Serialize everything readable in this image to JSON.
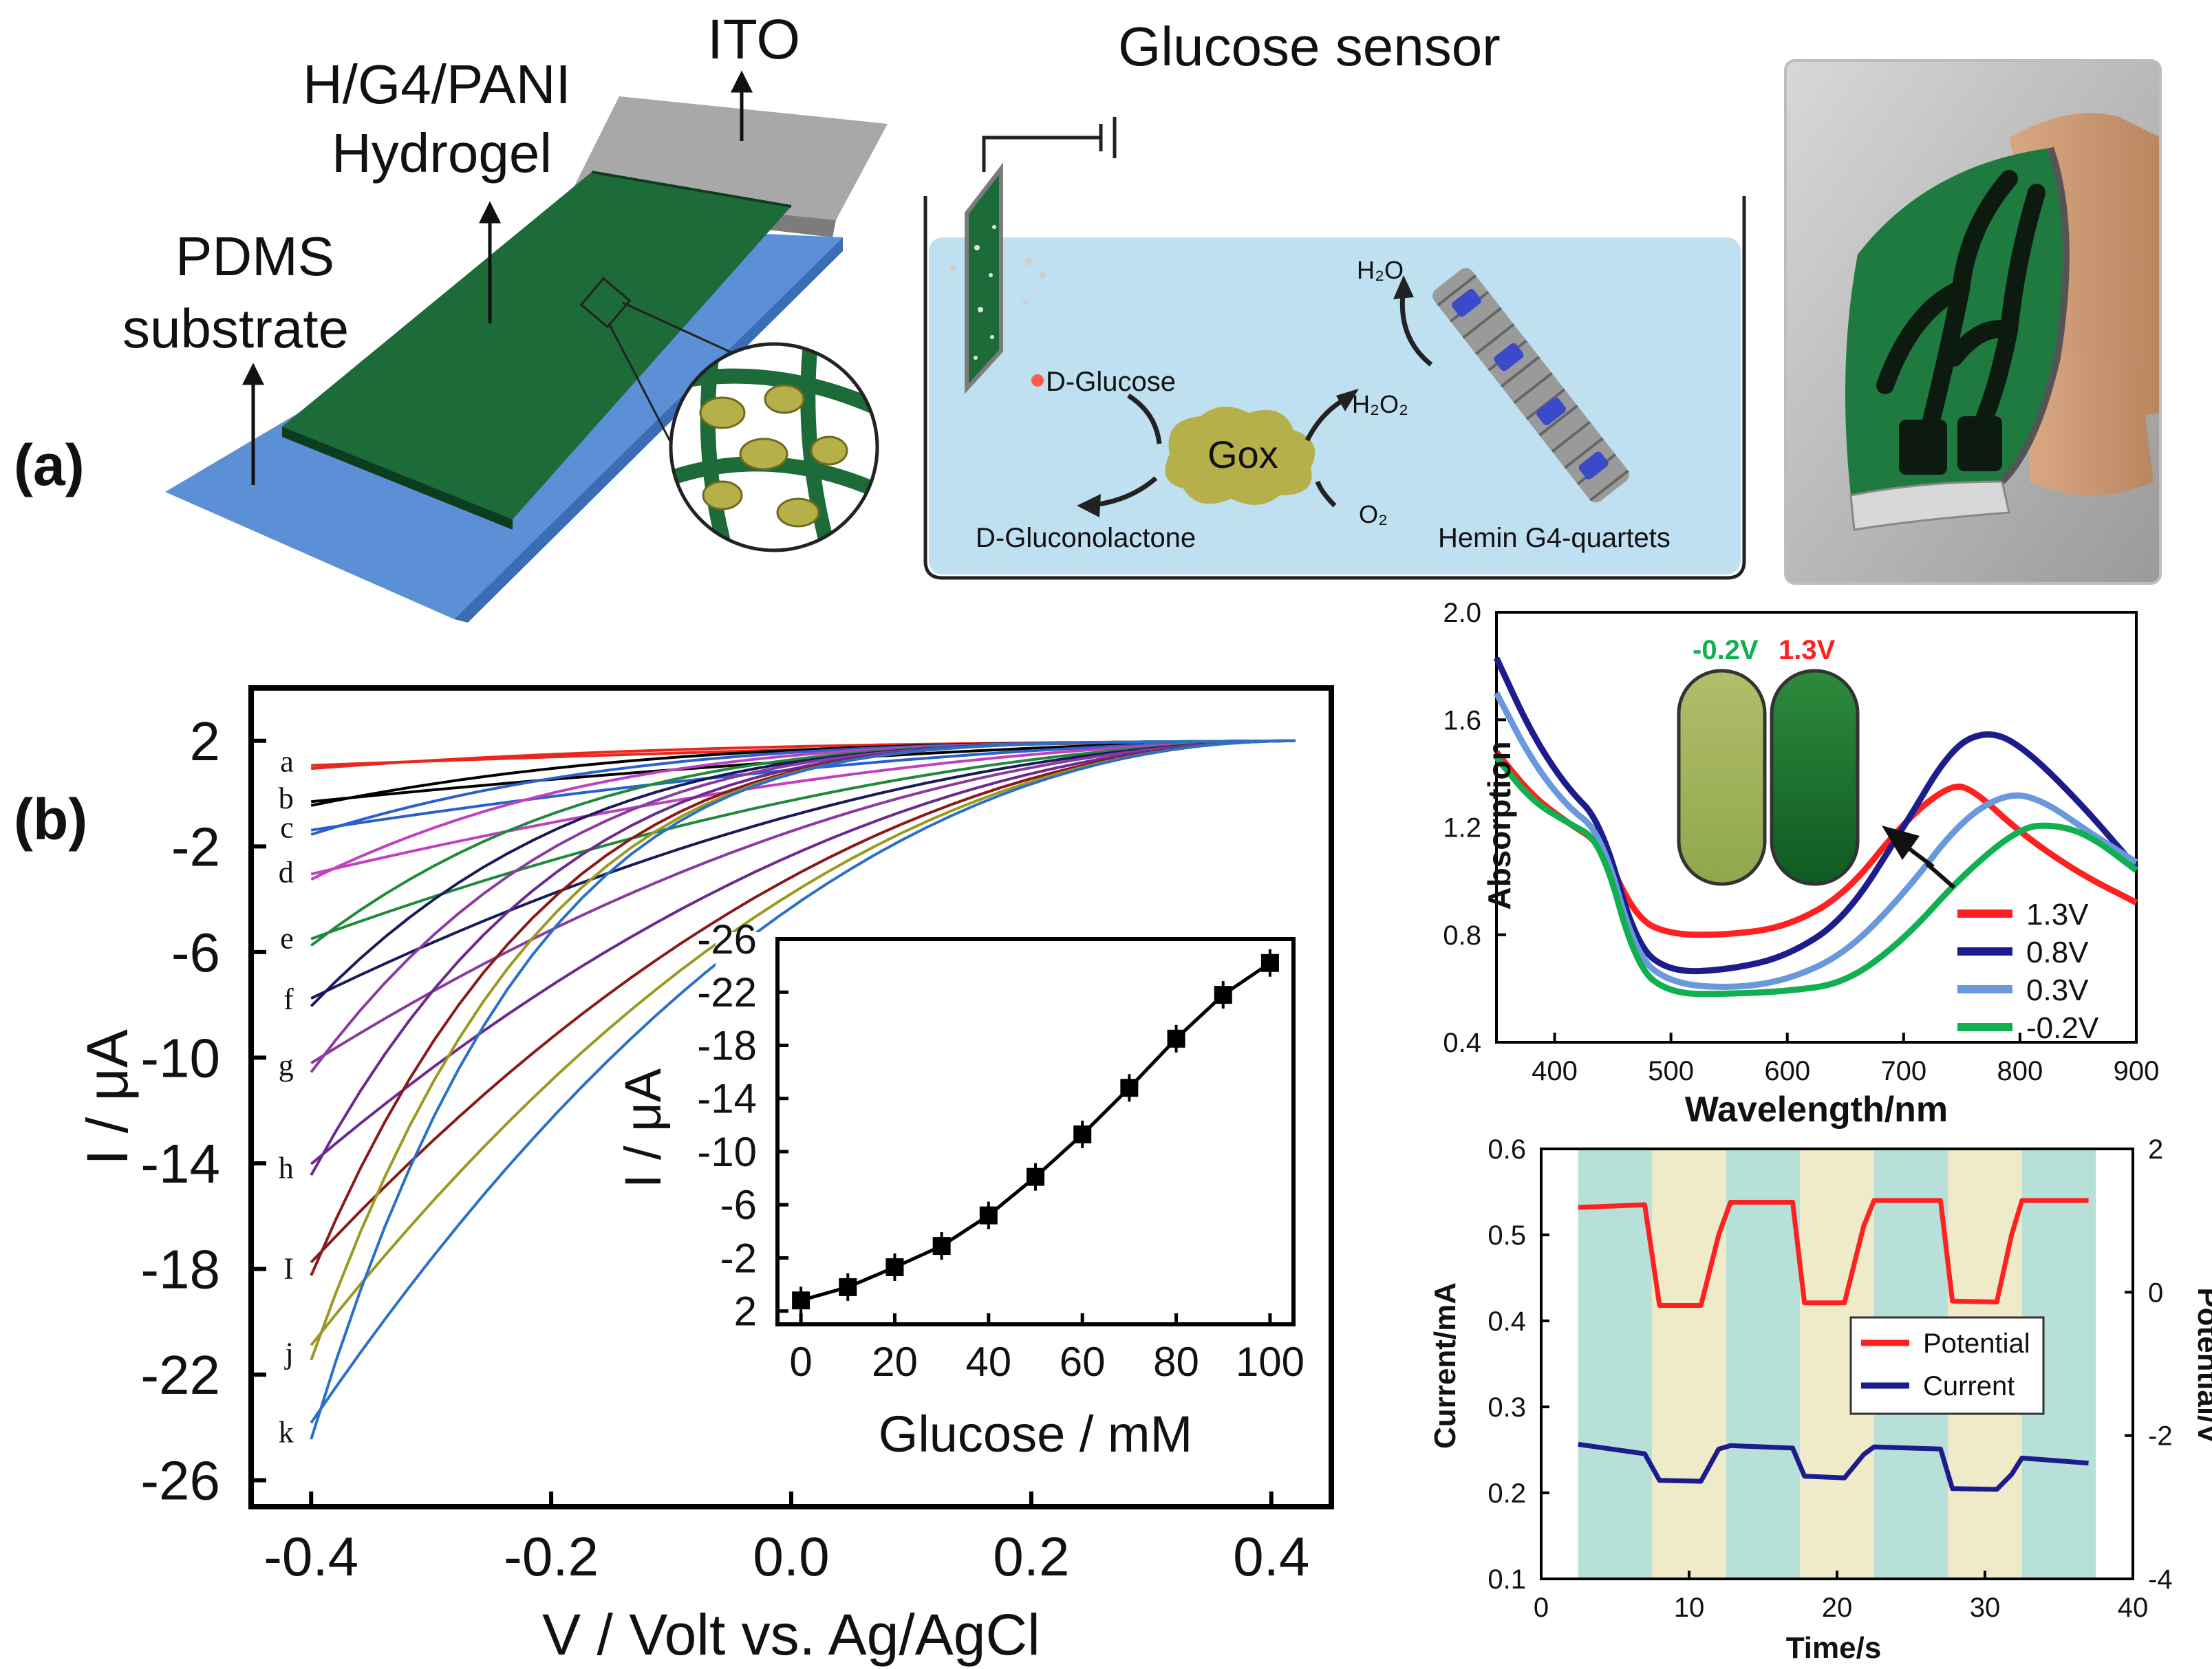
{
  "panel_labels": {
    "a": "(a)",
    "b": "(b)"
  },
  "schematic": {
    "ito": "ITO",
    "hydrogel_line1": "H/G4/PANI",
    "hydrogel_line2": "Hydrogel",
    "pdms_line1": "PDMS",
    "pdms_line2": "substrate"
  },
  "sensor": {
    "title": "Glucose sensor",
    "d_glucose": "D-Glucose",
    "gox": "Gox",
    "h2o": "H₂O",
    "h2o2": "H₂O₂",
    "o2": "O₂",
    "gluconolactone": "D-Gluconolactone",
    "hemin": "Hemin G4-quartets"
  },
  "photo": {
    "name": "flexible-device-photo"
  },
  "colors": {
    "hydrogel_green": "#1e6b3a",
    "pdms_blue": "#5b8fd6",
    "ito_gray": "#a8a8a8",
    "solution_blue": "#bfe0f0",
    "gox_olive": "#b5b04a",
    "potential_red": "#ff2020",
    "current_navy": "#1c1c8c"
  },
  "chart_data": [
    {
      "id": "cv",
      "type": "line",
      "xlabel": "V / Volt vs. Ag/AgCl",
      "ylabel": "I / μA",
      "xlim": [
        -0.45,
        0.45
      ],
      "ylim": [
        -27,
        4
      ],
      "y_inverted": true,
      "x_ticks": [
        "-0.4",
        "-0.2",
        "0.0",
        "0.2",
        "0.4"
      ],
      "x_tick_values": [
        -0.4,
        -0.2,
        0.0,
        0.2,
        0.4
      ],
      "y_ticks": [
        "2",
        "-2",
        "-6",
        "-10",
        "-14",
        "-18",
        "-22",
        "-26"
      ],
      "y_tick_values": [
        2,
        -2,
        -6,
        -10,
        -14,
        -18,
        -22,
        -26
      ],
      "series": [
        {
          "name": "a",
          "start": 1.2,
          "color": "#e8281e"
        },
        {
          "name": "b",
          "start": -0.2,
          "color": "#000000"
        },
        {
          "name": "c",
          "start": -1.3,
          "color": "#2a5fcc"
        },
        {
          "name": "d",
          "start": -3.0,
          "color": "#c040c0"
        },
        {
          "name": "e",
          "start": -5.5,
          "color": "#1e8a3a"
        },
        {
          "name": "f",
          "start": -7.8,
          "color": "#1a1a5a"
        },
        {
          "name": "g",
          "start": -10.3,
          "color": "#8a3aa0"
        },
        {
          "name": "h",
          "start": -14.2,
          "color": "#6a2a90"
        },
        {
          "name": "I",
          "start": -18.0,
          "color": "#8a1a1a"
        },
        {
          "name": "j",
          "start": -21.2,
          "color": "#9a9a20"
        },
        {
          "name": "k",
          "start": -24.2,
          "color": "#2a70c8"
        }
      ]
    },
    {
      "id": "inset",
      "type": "line",
      "xlabel": "Glucose / mM",
      "ylabel": "I / μA",
      "xlim": [
        -5,
        105
      ],
      "ylim": [
        3,
        -26
      ],
      "x_ticks": [
        "0",
        "20",
        "40",
        "60",
        "80",
        "100"
      ],
      "x_tick_values": [
        0,
        20,
        40,
        60,
        80,
        100
      ],
      "y_ticks": [
        "-26",
        "-22",
        "-18",
        "-14",
        "-10",
        "-6",
        "-2",
        "2"
      ],
      "y_tick_values": [
        -26,
        -22,
        -18,
        -14,
        -10,
        -6,
        -2,
        2
      ],
      "x": [
        0,
        10,
        20,
        30,
        40,
        50,
        60,
        70,
        80,
        90,
        100
      ],
      "y": [
        1.2,
        0.2,
        -1.3,
        -2.9,
        -5.2,
        -8.1,
        -11.3,
        -14.8,
        -18.5,
        -21.8,
        -24.2
      ]
    },
    {
      "id": "absorption",
      "type": "line",
      "xlabel": "Wavelength/nm",
      "ylabel": "Absorption",
      "xlim": [
        350,
        900
      ],
      "ylim": [
        0.4,
        2.0
      ],
      "x_ticks": [
        "400",
        "500",
        "600",
        "700",
        "800",
        "900"
      ],
      "x_tick_values": [
        400,
        500,
        600,
        700,
        800,
        900
      ],
      "y_ticks": [
        "0.4",
        "0.8",
        "1.2",
        "1.6",
        "2.0"
      ],
      "y_tick_values": [
        0.4,
        0.8,
        1.2,
        1.6,
        2.0
      ],
      "inset_labels": [
        "-0.2V",
        "1.3V"
      ],
      "series": [
        {
          "name": "1.3V",
          "color": "#ff2020",
          "x": [
            350,
            380,
            410,
            440,
            470,
            500,
            550,
            600,
            650,
            700,
            740,
            760,
            800,
            850,
            900
          ],
          "y": [
            1.48,
            1.32,
            1.22,
            1.14,
            0.86,
            0.8,
            0.8,
            0.83,
            0.95,
            1.22,
            1.36,
            1.34,
            1.18,
            1.03,
            0.92
          ]
        },
        {
          "name": "0.8V",
          "color": "#1c1c8c",
          "x": [
            350,
            380,
            410,
            440,
            470,
            500,
            550,
            600,
            650,
            700,
            740,
            770,
            800,
            850,
            900
          ],
          "y": [
            1.83,
            1.55,
            1.35,
            1.22,
            0.76,
            0.66,
            0.67,
            0.72,
            0.86,
            1.2,
            1.49,
            1.56,
            1.51,
            1.3,
            1.05
          ]
        },
        {
          "name": "0.3V",
          "color": "#6a98dc",
          "x": [
            350,
            380,
            410,
            440,
            470,
            500,
            550,
            600,
            650,
            700,
            750,
            790,
            820,
            860,
            900
          ],
          "y": [
            1.7,
            1.45,
            1.28,
            1.18,
            0.72,
            0.62,
            0.6,
            0.63,
            0.73,
            0.95,
            1.23,
            1.33,
            1.3,
            1.18,
            1.07
          ]
        },
        {
          "name": "-0.2V",
          "color": "#10b050",
          "x": [
            350,
            380,
            410,
            440,
            470,
            500,
            550,
            600,
            650,
            700,
            750,
            800,
            830,
            860,
            900
          ],
          "y": [
            1.46,
            1.3,
            1.22,
            1.15,
            0.68,
            0.58,
            0.58,
            0.59,
            0.62,
            0.78,
            1.02,
            1.2,
            1.21,
            1.17,
            1.04
          ]
        }
      ]
    },
    {
      "id": "switching",
      "type": "line",
      "xlabel": "Time/s",
      "ylabel": "Current/mA",
      "ylabel_right": "Potential/V",
      "xlim": [
        0,
        40
      ],
      "ylim": [
        0.1,
        0.6
      ],
      "ylim_right": [
        -4,
        2
      ],
      "x_ticks": [
        "0",
        "10",
        "20",
        "30",
        "40"
      ],
      "x_tick_values": [
        0,
        10,
        20,
        30,
        40
      ],
      "y_ticks": [
        "0.1",
        "0.2",
        "0.3",
        "0.4",
        "0.5",
        "0.6"
      ],
      "y_tick_values": [
        0.1,
        0.2,
        0.3,
        0.4,
        0.5,
        0.6
      ],
      "y_ticks_right": [
        "-4",
        "-2",
        "0",
        "2"
      ],
      "y_tick_values_right": [
        -4,
        -2,
        0,
        2
      ],
      "bands": [
        {
          "from": 2.5,
          "to": 7.5,
          "color": "#b6e0d8"
        },
        {
          "from": 7.5,
          "to": 12.5,
          "color": "#efeac8"
        },
        {
          "from": 12.5,
          "to": 17.5,
          "color": "#b6e0d8"
        },
        {
          "from": 17.5,
          "to": 22.5,
          "color": "#efeac8"
        },
        {
          "from": 22.5,
          "to": 27.5,
          "color": "#b6e0d8"
        },
        {
          "from": 27.5,
          "to": 32.5,
          "color": "#efeac8"
        },
        {
          "from": 32.5,
          "to": 37.5,
          "color": "#b6e0d8"
        }
      ],
      "series": [
        {
          "name": "Potential",
          "color": "#ff2020",
          "x": [
            2.5,
            7.0,
            8.0,
            10.8,
            12.0,
            12.8,
            17.0,
            17.8,
            20.5,
            21.8,
            22.5,
            27.0,
            27.8,
            30.8,
            31.8,
            32.5,
            37.0
          ],
          "y": [
            0.532,
            0.535,
            0.418,
            0.418,
            0.5,
            0.538,
            0.538,
            0.421,
            0.421,
            0.51,
            0.54,
            0.54,
            0.423,
            0.422,
            0.5,
            0.54,
            0.54
          ]
        },
        {
          "name": "Current",
          "color": "#1c1c8c",
          "x": [
            2.5,
            7.0,
            8.0,
            10.8,
            12.0,
            12.8,
            17.0,
            17.8,
            20.5,
            21.8,
            22.5,
            27.0,
            27.8,
            30.8,
            31.8,
            32.5,
            37.0
          ],
          "y": [
            0.255,
            0.245,
            0.215,
            0.215,
            0.25,
            0.255,
            0.253,
            0.218,
            0.217,
            0.245,
            0.255,
            0.25,
            0.205,
            0.205,
            0.22,
            0.24,
            0.235
          ]
        }
      ]
    }
  ]
}
